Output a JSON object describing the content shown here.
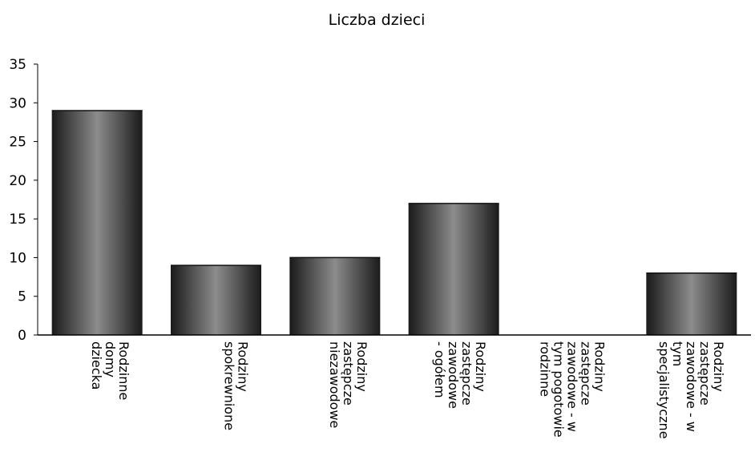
{
  "chart_data": {
    "type": "bar",
    "title": "Liczba dzieci",
    "xlabel": "",
    "ylabel": "",
    "ylim": [
      0,
      35
    ],
    "yticks": [
      "0",
      "5",
      "10",
      "15",
      "20",
      "25",
      "30",
      "35"
    ],
    "grid": false,
    "legend": "none",
    "categories": [
      "Rodzinne domy dziecka",
      "Rodziny spokrewnione",
      "Rodziny zastępcze niezawodowe",
      "Rodziny zastępcze zawodowe - ogółem",
      "Rodziny zastępcze zawodowe - w tym pogotowie rodzinne",
      "Rodziny zastępcze zawodowe - w tym specjalistyczne"
    ],
    "category_label_lines": [
      [
        "Rodzinne",
        "domy",
        "dziecka"
      ],
      [
        "Rodziny",
        "spokrewnione"
      ],
      [
        "Rodziny",
        "zastępcze",
        "niezawodowe"
      ],
      [
        "Rodziny",
        "zastępcze",
        "zawodowe",
        "- ogółem"
      ],
      [
        "Rodziny",
        "zastępcze",
        "zawodowe - w",
        "tym pogotowie",
        "rodzinne"
      ],
      [
        "Rodziny",
        "zastępcze",
        "zawodowe - w",
        "tym",
        "specjalistyczne"
      ]
    ],
    "values": [
      29,
      9,
      10,
      17,
      0,
      8
    ],
    "colors": {
      "bar_edge": "#1a1a1a",
      "bar_mid": "#8c8c8c",
      "axis": "#000000"
    }
  }
}
